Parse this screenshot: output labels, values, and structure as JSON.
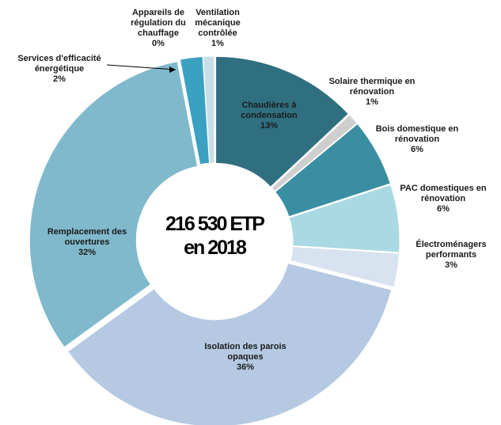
{
  "chart_data": {
    "type": "donut",
    "center_text": [
      "216 530 ETP",
      "en 2018"
    ],
    "categories": [
      "Chaudières à condensation",
      "Solaire thermique en rénovation",
      "Bois domestique en rénovation",
      "PAC domestiques en rénovation",
      "Électroménagers performants",
      "Isolation des parois opaques",
      "Remplacement des ouvertures",
      "Services d'efficacité énergétique",
      "Appareils de régulation du chauffage",
      "Ventilation mécanique contrôlée"
    ],
    "values": [
      13,
      1,
      6,
      6,
      3,
      36,
      32,
      2,
      0,
      1
    ],
    "value_labels": [
      "13%",
      "1%",
      "6%",
      "6%",
      "3%",
      "36%",
      "32%",
      "2%",
      "0%",
      "1%"
    ],
    "colors": [
      "#2f6f80",
      "#cfcfcf",
      "#3a8ea2",
      "#a9d9e3",
      "#d7e3ef",
      "#b5c9e3",
      "#80b9cc",
      "#3aa1c1",
      "#f4f4f4",
      "#c9dfe7"
    ]
  }
}
